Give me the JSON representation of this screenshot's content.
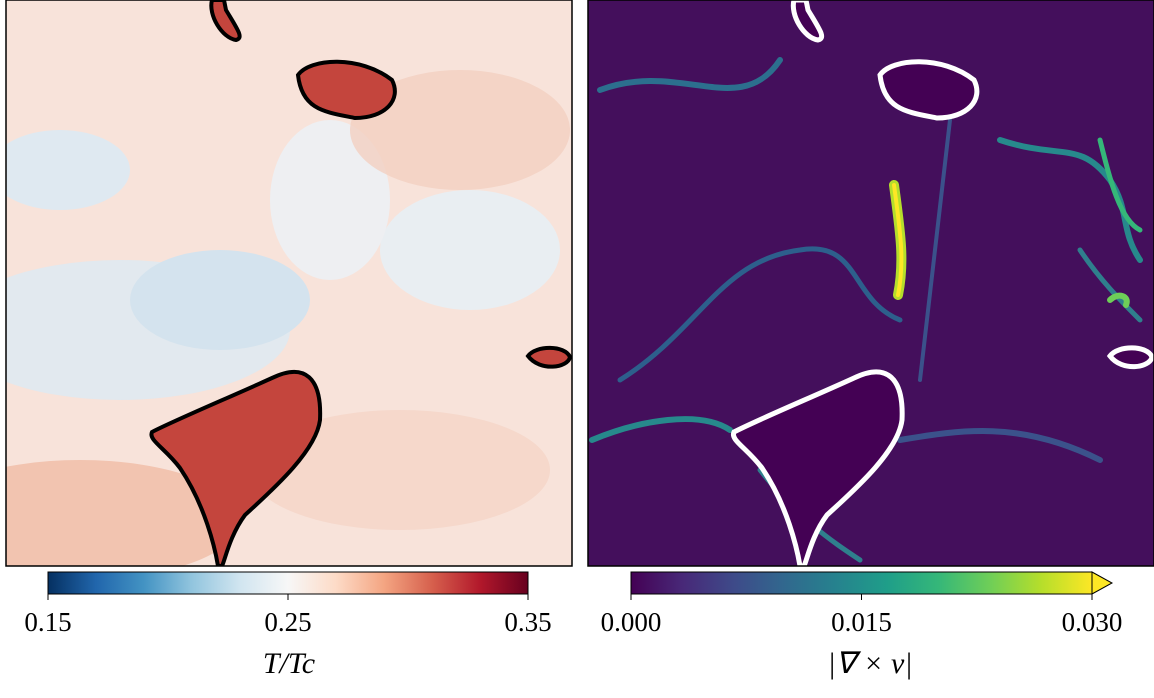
{
  "chart_data": [
    {
      "type": "heatmap",
      "colorbar_label": "T/Tc",
      "colors": [
        "#053061",
        "#2166ac",
        "#4393c3",
        "#92c5de",
        "#d1e5f0",
        "#f7f7f7",
        "#fddbc7",
        "#f4a582",
        "#d6604d",
        "#b2182b",
        "#67001f"
      ],
      "clim": [
        0.15,
        0.35
      ],
      "cticks": [
        0.15,
        0.25,
        0.35
      ],
      "extend": "neither"
    },
    {
      "type": "heatmap",
      "colorbar_label": "|∇ × v|",
      "colors": [
        "#440154",
        "#482878",
        "#3e4a89",
        "#31688e",
        "#26828e",
        "#1f9e89",
        "#35b779",
        "#6ece58",
        "#b5de2b",
        "#fde725"
      ],
      "clim": [
        0,
        0.03
      ],
      "cticks": [
        {
          "value": 0,
          "label": "0.000"
        },
        0.015,
        {
          "value": 0.03,
          "label": "0.030"
        }
      ],
      "extend": "max"
    }
  ]
}
